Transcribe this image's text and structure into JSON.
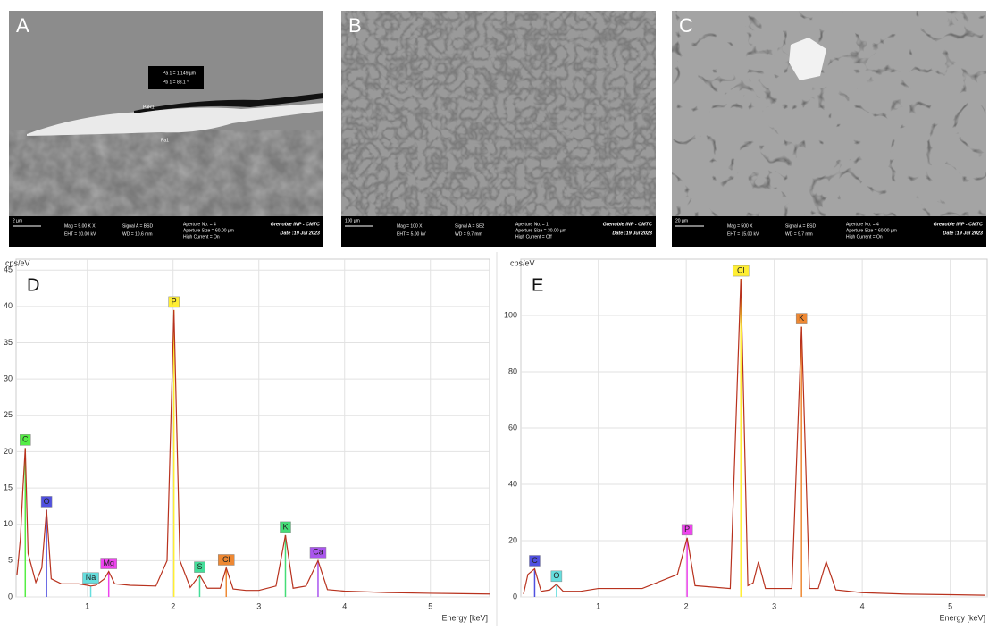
{
  "micrographs": [
    {
      "label": "A",
      "scale_bar": "2 µm",
      "mag": "Mag =   5.00 K X",
      "eht": "EHT = 10.00 kV",
      "signal": "Signal A = BSD",
      "wd": "WD = 10.6 mm",
      "aperture_no": "Aperture No. = 4",
      "aperture_size": "Aperture Size = 60.00 µm",
      "high_current": "High Current = On",
      "institution": "Grenoble INP - CMTC",
      "date": "Date :19 Jul 2023",
      "measurements": [
        "Pa 1 = 1.149 µm",
        "Pb 1 = 88.1 °",
        "PaR1",
        "Pa1"
      ]
    },
    {
      "label": "B",
      "scale_bar": "100 µm",
      "mag": "Mag =   100 X",
      "eht": "EHT = 5.00 kV",
      "signal": "Signal A = SE2",
      "wd": "WD = 9.7 mm",
      "aperture_no": "Aperture No. = 1",
      "aperture_size": "Aperture Size = 30.00 µm",
      "high_current": "High Current = Off",
      "institution": "Grenoble INP - CMTC",
      "date": "Date :19 Jul 2023"
    },
    {
      "label": "C",
      "scale_bar": "20 µm",
      "mag": "Mag =   500 X",
      "eht": "EHT = 15.00 kV",
      "signal": "Signal A = BSD",
      "wd": "WD = 9.7 mm",
      "aperture_no": "Aperture No. = 4",
      "aperture_size": "Aperture Size = 60.00 µm",
      "high_current": "High Current = On",
      "institution": "Grenoble INP - CMTC",
      "date": "Date :19 Jul 2023"
    }
  ],
  "chart_data": [
    {
      "type": "line",
      "panel": "D",
      "y_label": "cps/eV",
      "x_label": "Energy [keV]",
      "x": [
        0.18,
        0.22,
        0.25,
        0.277,
        0.31,
        0.4,
        0.47,
        0.525,
        0.58,
        0.7,
        0.9,
        1.0,
        1.04,
        1.1,
        1.2,
        1.25,
        1.32,
        1.5,
        1.8,
        1.93,
        2.01,
        2.08,
        2.2,
        2.31,
        2.4,
        2.55,
        2.62,
        2.7,
        2.85,
        3.0,
        3.2,
        3.31,
        3.4,
        3.55,
        3.69,
        3.8,
        4.0,
        4.5,
        5.0,
        5.69
      ],
      "series": [
        {
          "color": "#b8321e",
          "values": [
            3,
            8,
            15,
            20.5,
            6,
            2,
            4,
            12,
            2.5,
            1.8,
            1.8,
            1.6,
            1.5,
            1.6,
            2.5,
            3.5,
            1.8,
            1.6,
            1.5,
            5,
            39.5,
            5,
            1.3,
            3,
            1.2,
            1.2,
            4,
            1.1,
            0.9,
            0.9,
            1.5,
            8.5,
            1.2,
            1.5,
            5,
            1.0,
            0.8,
            0.6,
            0.5,
            0.4
          ]
        }
      ],
      "annotations": [
        {
          "text": "C",
          "x": 0.277,
          "y": 20.5,
          "color": "#55ee44"
        },
        {
          "text": "O",
          "x": 0.525,
          "y": 12,
          "color": "#5050e0"
        },
        {
          "text": "Na",
          "x": 1.04,
          "y": 1.5,
          "color": "#66dede"
        },
        {
          "text": "Mg",
          "x": 1.25,
          "y": 3.5,
          "color": "#ee44ee"
        },
        {
          "text": "P",
          "x": 2.01,
          "y": 39.5,
          "color": "#ffee33"
        },
        {
          "text": "S",
          "x": 2.31,
          "y": 3,
          "color": "#44dd99"
        },
        {
          "text": "Cl",
          "x": 2.62,
          "y": 4,
          "color": "#ee8833"
        },
        {
          "text": "K",
          "x": 3.31,
          "y": 8.5,
          "color": "#44dd77"
        },
        {
          "text": "Ca",
          "x": 3.69,
          "y": 5,
          "color": "#aa55ee"
        }
      ],
      "xlim": [
        0.17,
        5.69
      ],
      "ylim": [
        0,
        46.5
      ],
      "xticks": [
        1,
        2,
        3,
        4,
        5
      ],
      "yticks": [
        0,
        5,
        10,
        15,
        20,
        25,
        30,
        35,
        40,
        45
      ],
      "grid": true
    },
    {
      "type": "line",
      "panel": "E",
      "y_label": "cps/eV",
      "x_label": "Energy [keV]",
      "x": [
        0.15,
        0.2,
        0.277,
        0.35,
        0.45,
        0.525,
        0.6,
        0.8,
        1.0,
        1.5,
        1.9,
        2.01,
        2.1,
        2.5,
        2.62,
        2.7,
        2.76,
        2.82,
        2.9,
        3.2,
        3.31,
        3.4,
        3.5,
        3.59,
        3.7,
        4.0,
        4.5,
        5.0,
        5.4
      ],
      "series": [
        {
          "color": "#b8321e",
          "values": [
            1,
            8,
            10,
            2,
            2.5,
            4.5,
            2,
            2,
            3,
            3,
            8,
            21,
            4,
            3,
            113,
            4,
            5,
            12.5,
            3,
            3,
            96,
            3,
            3,
            12.5,
            2.5,
            1.5,
            1,
            0.8,
            0.6
          ]
        }
      ],
      "annotations": [
        {
          "text": "C",
          "x": 0.277,
          "y": 10,
          "color": "#5050e0"
        },
        {
          "text": "O",
          "x": 0.525,
          "y": 4.5,
          "color": "#66dede"
        },
        {
          "text": "P",
          "x": 2.01,
          "y": 21,
          "color": "#ee44ee"
        },
        {
          "text": "Cl",
          "x": 2.62,
          "y": 113,
          "color": "#ffee33"
        },
        {
          "text": "K",
          "x": 3.31,
          "y": 96,
          "color": "#ee8833"
        }
      ],
      "xlim": [
        0.12,
        5.42
      ],
      "ylim": [
        0,
        120
      ],
      "xticks": [
        1,
        2,
        3,
        4,
        5
      ],
      "yticks": [
        0,
        20,
        40,
        60,
        80,
        100
      ],
      "grid": true
    }
  ]
}
